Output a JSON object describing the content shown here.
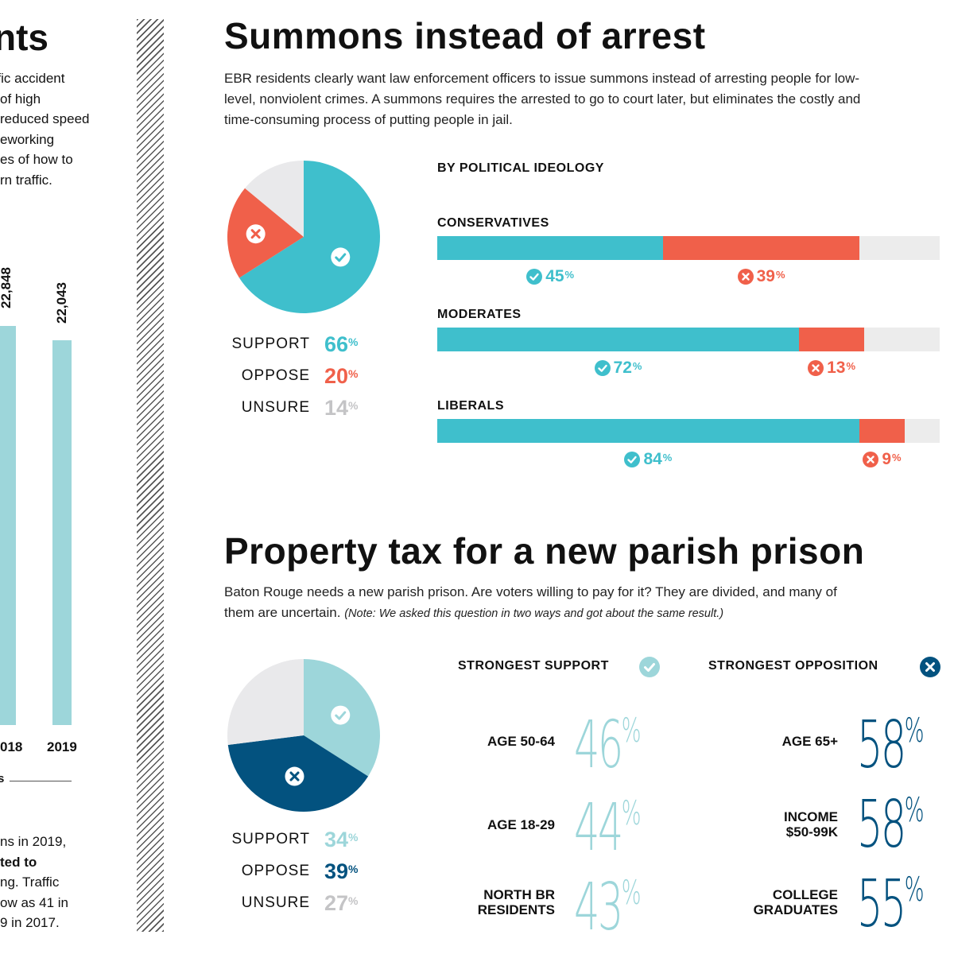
{
  "left": {
    "title_fragment": "nts",
    "para_lines": [
      "ffic accident",
      "of high",
      "reduced speed",
      "eworking",
      "es of how to",
      "rn traffic."
    ],
    "bar_values": [
      "22,848",
      "22,043"
    ],
    "bar_years": [
      "018",
      "2019"
    ],
    "small_mark": "s",
    "bottom_lines": [
      "ns in 2019,",
      "ted to",
      "ng. Traffic",
      "ow as 41 in",
      "9 in 2017."
    ],
    "bar_color": "#9dd6da"
  },
  "summons": {
    "title": "Summons instead of arrest",
    "para": "EBR residents clearly want law enforcement officers to issue summons instead of arresting people for low-level, nonviolent crimes. A summons requires the arrested to go to court later, but eliminates the costly and time-consuming process of putting people in jail.",
    "pie": {
      "slices": [
        {
          "name": "SUPPORT",
          "value": 66,
          "color": "#3fbfcc"
        },
        {
          "name": "OPPOSE",
          "value": 20,
          "color": "#f0604a"
        },
        {
          "name": "UNSURE",
          "value": 14,
          "color": "#e9e9eb"
        }
      ]
    },
    "legend": [
      {
        "label": "SUPPORT",
        "value": "66",
        "unit": "%",
        "color": "#3fbfcc"
      },
      {
        "label": "OPPOSE",
        "value": "20",
        "unit": "%",
        "color": "#f0604a"
      },
      {
        "label": "UNSURE",
        "value": "14",
        "unit": "%",
        "color": "#c4c4c6"
      }
    ],
    "ideology_heading": "BY POLITICAL IDEOLOGY",
    "ideology": [
      {
        "group": "CONSERVATIVES",
        "support": 45,
        "oppose": 39,
        "support_label": "45",
        "oppose_label": "39",
        "unit": "%"
      },
      {
        "group": "MODERATES",
        "support": 72,
        "oppose": 13,
        "support_label": "72",
        "oppose_label": "13",
        "unit": "%"
      },
      {
        "group": "LIBERALS",
        "support": 84,
        "oppose": 9,
        "support_label": "84",
        "oppose_label": "9",
        "unit": "%"
      }
    ]
  },
  "prison": {
    "title": "Property tax for a new parish prison",
    "para_main": "Baton Rouge needs a new parish prison. Are voters willing to pay for it? They are divided, and many of them are uncertain.",
    "para_note": "(Note: We asked this question in two ways and got about the same result.)",
    "pie": {
      "slices": [
        {
          "name": "SUPPORT",
          "value": 34,
          "color": "#9dd6da"
        },
        {
          "name": "OPPOSE",
          "value": 39,
          "color": "#03527f"
        },
        {
          "name": "UNSURE",
          "value": 27,
          "color": "#e9e9eb"
        }
      ]
    },
    "legend": [
      {
        "label": "SUPPORT",
        "value": "34",
        "unit": "%",
        "color": "#9dd6da"
      },
      {
        "label": "OPPOSE",
        "value": "39",
        "unit": "%",
        "color": "#03527f"
      },
      {
        "label": "UNSURE",
        "value": "27",
        "unit": "%",
        "color": "#c4c4c6"
      }
    ],
    "support_heading": "STRONGEST SUPPORT",
    "opposition_heading": "STRONGEST OPPOSITION",
    "support_groups": [
      {
        "label_lines": [
          "AGE 50-64"
        ],
        "value": "46",
        "unit": "%"
      },
      {
        "label_lines": [
          "AGE 18-29"
        ],
        "value": "44",
        "unit": "%"
      },
      {
        "label_lines": [
          "NORTH BR",
          "RESIDENTS"
        ],
        "value": "43",
        "unit": "%"
      }
    ],
    "opposition_groups": [
      {
        "label_lines": [
          "AGE 65+"
        ],
        "value": "58",
        "unit": "%"
      },
      {
        "label_lines": [
          "INCOME",
          "$50-99K"
        ],
        "value": "58",
        "unit": "%"
      },
      {
        "label_lines": [
          "COLLEGE",
          "GRADUATES"
        ],
        "value": "55",
        "unit": "%"
      }
    ]
  },
  "colors": {
    "teal": "#3fbfcc",
    "coral": "#f0604a",
    "light_teal": "#9dd6da",
    "navy": "#03527f",
    "grey": "#e9e9eb"
  },
  "chart_data": [
    {
      "type": "bar",
      "categories": [
        "018",
        "2019"
      ],
      "values": [
        22848,
        22043
      ],
      "title": "",
      "xlabel": "",
      "ylabel": ""
    },
    {
      "type": "pie",
      "title": "Summons instead of arrest",
      "categories": [
        "SUPPORT",
        "OPPOSE",
        "UNSURE"
      ],
      "values": [
        66,
        20,
        14
      ]
    },
    {
      "type": "bar",
      "title": "BY POLITICAL IDEOLOGY",
      "categories": [
        "CONSERVATIVES",
        "MODERATES",
        "LIBERALS"
      ],
      "series": [
        {
          "name": "",
          "values": [
            45,
            72,
            84
          ]
        },
        {
          "name": "",
          "values": [
            39,
            13,
            9
          ]
        }
      ],
      "ylim": [
        0,
        100
      ]
    },
    {
      "type": "pie",
      "title": "Property tax for a new parish prison",
      "categories": [
        "SUPPORT",
        "OPPOSE",
        "UNSURE"
      ],
      "values": [
        34,
        39,
        27
      ]
    },
    {
      "type": "table",
      "title": "STRONGEST SUPPORT",
      "categories": [
        "AGE 50-64",
        "AGE 18-29",
        "NORTH BR RESIDENTS"
      ],
      "values": [
        46,
        44,
        43
      ]
    },
    {
      "type": "table",
      "title": "STRONGEST OPPOSITION",
      "categories": [
        "AGE 65+",
        "INCOME $50-99K",
        "COLLEGE GRADUATES"
      ],
      "values": [
        58,
        58,
        55
      ]
    }
  ]
}
